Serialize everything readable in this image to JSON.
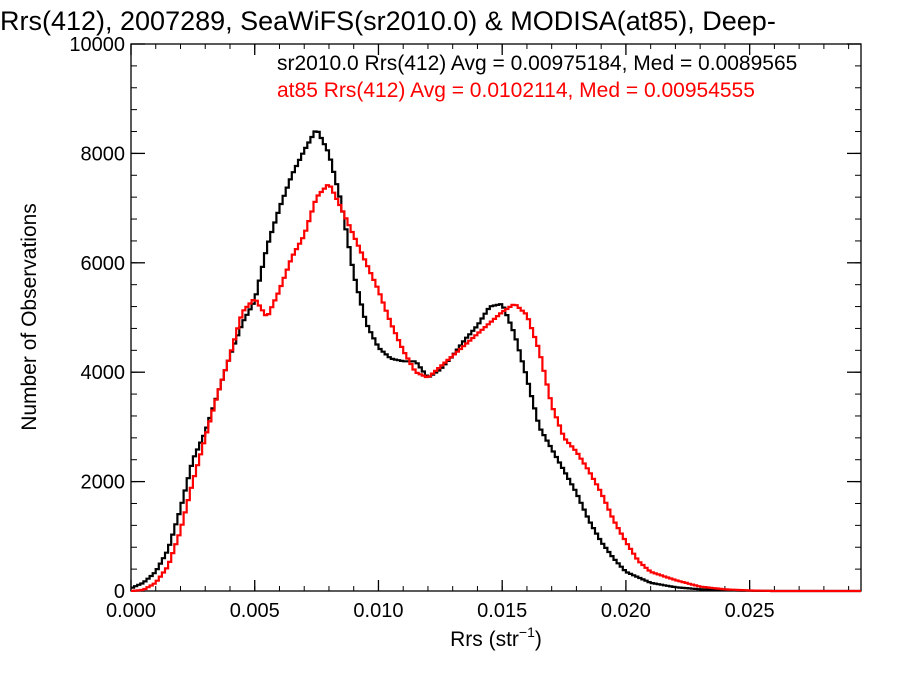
{
  "chart_data": {
    "type": "line",
    "title": "Rrs(412), 2007289, SeaWiFS(sr2010.0) & MODISA(at85), Deep-",
    "xlabel_main": "Rrs (str",
    "xlabel_sup": "−1",
    "xlabel_tail": ")",
    "ylabel": "Number of Observations",
    "xlim": [
      0.0,
      0.0295
    ],
    "ylim": [
      0,
      10000
    ],
    "xticks": [
      "0.000",
      "0.005",
      "0.010",
      "0.015",
      "0.020",
      "0.025"
    ],
    "xtick_values": [
      0.0,
      0.005,
      0.01,
      0.015,
      0.02,
      0.025
    ],
    "yticks": [
      "0",
      "2000",
      "4000",
      "6000",
      "8000",
      "10000"
    ],
    "ytick_values": [
      0,
      2000,
      4000,
      6000,
      8000,
      10000
    ],
    "grid": false,
    "series": [
      {
        "name": "sr2010.0",
        "color": "#000000",
        "legend": "sr2010.0 Rrs(412) Avg = 0.00975184, Med = 0.0089565",
        "points": [
          [
            0.0,
            50
          ],
          [
            0.0005,
            150
          ],
          [
            0.001,
            350
          ],
          [
            0.0015,
            750
          ],
          [
            0.002,
            1500
          ],
          [
            0.0025,
            2400
          ],
          [
            0.003,
            2900
          ],
          [
            0.0035,
            3600
          ],
          [
            0.004,
            4300
          ],
          [
            0.0045,
            4900
          ],
          [
            0.005,
            5300
          ],
          [
            0.0055,
            6300
          ],
          [
            0.006,
            7000
          ],
          [
            0.0065,
            7600
          ],
          [
            0.007,
            8050
          ],
          [
            0.0075,
            8450
          ],
          [
            0.008,
            8000
          ],
          [
            0.0085,
            7100
          ],
          [
            0.009,
            5800
          ],
          [
            0.0095,
            4900
          ],
          [
            0.01,
            4450
          ],
          [
            0.0105,
            4250
          ],
          [
            0.011,
            4200
          ],
          [
            0.0115,
            4200
          ],
          [
            0.012,
            3900
          ],
          [
            0.0125,
            4050
          ],
          [
            0.013,
            4300
          ],
          [
            0.0135,
            4600
          ],
          [
            0.014,
            4850
          ],
          [
            0.0145,
            5200
          ],
          [
            0.015,
            5250
          ],
          [
            0.0155,
            4700
          ],
          [
            0.016,
            3900
          ],
          [
            0.0165,
            3000
          ],
          [
            0.017,
            2600
          ],
          [
            0.0175,
            2200
          ],
          [
            0.018,
            1800
          ],
          [
            0.0185,
            1300
          ],
          [
            0.019,
            900
          ],
          [
            0.0195,
            600
          ],
          [
            0.02,
            350
          ],
          [
            0.021,
            150
          ],
          [
            0.022,
            70
          ],
          [
            0.023,
            30
          ],
          [
            0.024,
            15
          ],
          [
            0.025,
            5
          ],
          [
            0.026,
            0
          ],
          [
            0.0295,
            0
          ]
        ]
      },
      {
        "name": "at85",
        "color": "#ff0000",
        "legend": "at85 Rrs(412) Avg = 0.0102114, Med = 0.00954555",
        "points": [
          [
            0.0,
            0
          ],
          [
            0.0005,
            20
          ],
          [
            0.001,
            150
          ],
          [
            0.0015,
            450
          ],
          [
            0.002,
            1100
          ],
          [
            0.0025,
            2000
          ],
          [
            0.003,
            2800
          ],
          [
            0.0035,
            3600
          ],
          [
            0.004,
            4300
          ],
          [
            0.0045,
            5100
          ],
          [
            0.005,
            5350
          ],
          [
            0.0055,
            5000
          ],
          [
            0.006,
            5500
          ],
          [
            0.0065,
            6100
          ],
          [
            0.007,
            6500
          ],
          [
            0.0075,
            7200
          ],
          [
            0.008,
            7450
          ],
          [
            0.0085,
            7000
          ],
          [
            0.009,
            6500
          ],
          [
            0.0095,
            6000
          ],
          [
            0.01,
            5500
          ],
          [
            0.0105,
            4900
          ],
          [
            0.011,
            4400
          ],
          [
            0.0115,
            4000
          ],
          [
            0.012,
            3900
          ],
          [
            0.0125,
            4100
          ],
          [
            0.013,
            4300
          ],
          [
            0.0135,
            4500
          ],
          [
            0.014,
            4700
          ],
          [
            0.0145,
            4900
          ],
          [
            0.015,
            5100
          ],
          [
            0.0155,
            5250
          ],
          [
            0.016,
            5050
          ],
          [
            0.0165,
            4400
          ],
          [
            0.017,
            3400
          ],
          [
            0.0175,
            2800
          ],
          [
            0.018,
            2550
          ],
          [
            0.0185,
            2200
          ],
          [
            0.019,
            1800
          ],
          [
            0.0195,
            1300
          ],
          [
            0.02,
            900
          ],
          [
            0.0205,
            550
          ],
          [
            0.021,
            350
          ],
          [
            0.022,
            200
          ],
          [
            0.023,
            80
          ],
          [
            0.024,
            30
          ],
          [
            0.025,
            10
          ],
          [
            0.026,
            0
          ],
          [
            0.0295,
            0
          ]
        ]
      }
    ]
  }
}
